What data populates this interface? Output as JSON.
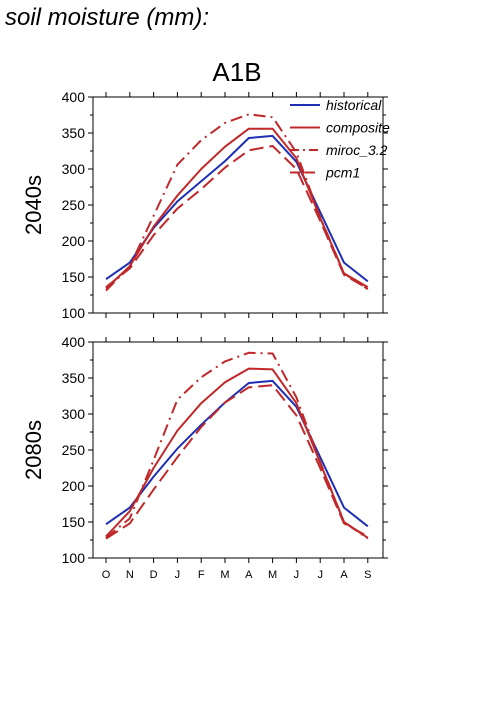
{
  "page": {
    "title": "soil moisture (mm):"
  },
  "chart_data": {
    "type": "line",
    "title": "A1B",
    "categories": [
      "O",
      "N",
      "D",
      "J",
      "F",
      "M",
      "A",
      "M",
      "J",
      "J",
      "A",
      "S"
    ],
    "ylim": [
      100,
      400
    ],
    "yticks": [
      100,
      150,
      200,
      250,
      300,
      350,
      400
    ],
    "legend_position": "top-right",
    "colors": {
      "historical": "#1f2fb4",
      "scenario": "#c0282a"
    },
    "panels": [
      {
        "ylabel": "2040s",
        "series": [
          {
            "name": "historical",
            "style": "solid",
            "values": [
              147,
              170,
              218,
              255,
              283,
              311,
              343,
              346,
              310,
              240,
              170,
              144
            ]
          },
          {
            "name": "composite",
            "style": "solid",
            "values": [
              134,
              165,
              220,
              263,
              300,
              331,
              356,
              356,
              315,
              232,
              155,
              136
            ]
          },
          {
            "name": "miroc_3.2",
            "style": "dashdot",
            "values": [
              131,
              165,
              235,
              306,
              340,
              364,
              376,
              372,
              323,
              233,
              155,
              133
            ]
          },
          {
            "name": "pcm1",
            "style": "dash",
            "values": [
              136,
              162,
              208,
              245,
              272,
              302,
              326,
              332,
              300,
              228,
              153,
              134
            ]
          }
        ]
      },
      {
        "ylabel": "2080s",
        "series": [
          {
            "name": "historical",
            "style": "solid",
            "values": [
              147,
              170,
              213,
              252,
              285,
              316,
              343,
              346,
              310,
              240,
              170,
              144
            ]
          },
          {
            "name": "composite",
            "style": "solid",
            "values": [
              130,
              165,
              225,
              277,
              315,
              344,
              363,
              362,
              315,
              232,
              150,
              128
            ]
          },
          {
            "name": "miroc_3.2",
            "style": "dashdot",
            "values": [
              128,
              155,
              236,
              320,
              351,
              373,
              385,
              384,
              323,
              233,
              150,
              127
            ]
          },
          {
            "name": "pcm1",
            "style": "dash",
            "values": [
              127,
              148,
              195,
              240,
              282,
              316,
              337,
              340,
              298,
              225,
              148,
              130
            ]
          }
        ]
      }
    ]
  }
}
